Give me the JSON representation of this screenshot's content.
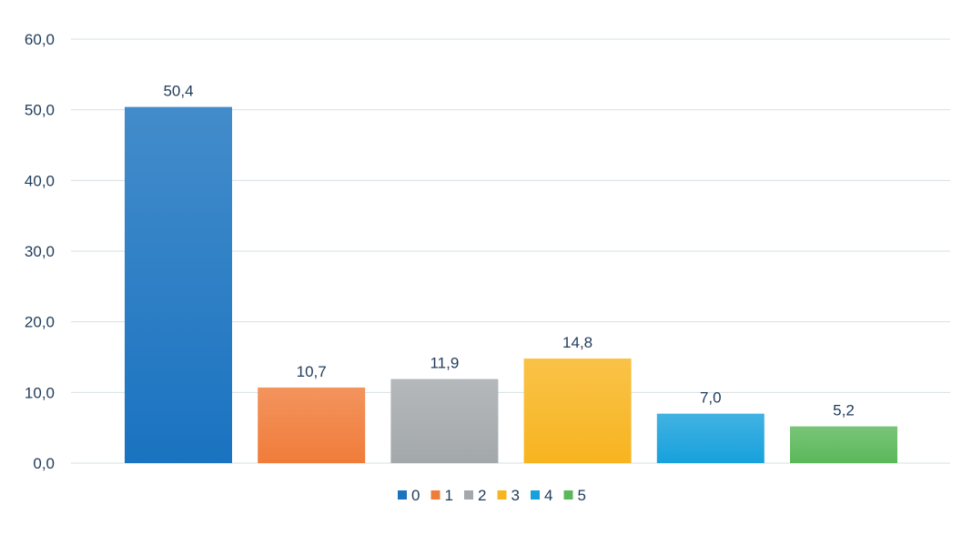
{
  "chart_data": {
    "type": "bar",
    "categories": [
      "0",
      "1",
      "2",
      "3",
      "4",
      "5"
    ],
    "values": [
      50.4,
      10.7,
      11.9,
      14.8,
      7.0,
      5.2
    ],
    "value_labels": [
      "50,4",
      "10,7",
      "11,9",
      "14,8",
      "7,0",
      "5,2"
    ],
    "ylim": [
      0,
      60
    ],
    "yticks": [
      0,
      10,
      20,
      30,
      40,
      50,
      60
    ],
    "ytick_labels": [
      "0,0",
      "10,0",
      "20,0",
      "30,0",
      "40,0",
      "50,0",
      "60,0"
    ],
    "grid": true,
    "legend_position": "bottom",
    "colors": [
      "#1a73c0",
      "#f07c3a",
      "#a3a8ab",
      "#f8b420",
      "#17a1dc",
      "#5bb85a"
    ],
    "title": "",
    "xlabel": "",
    "ylabel": ""
  }
}
